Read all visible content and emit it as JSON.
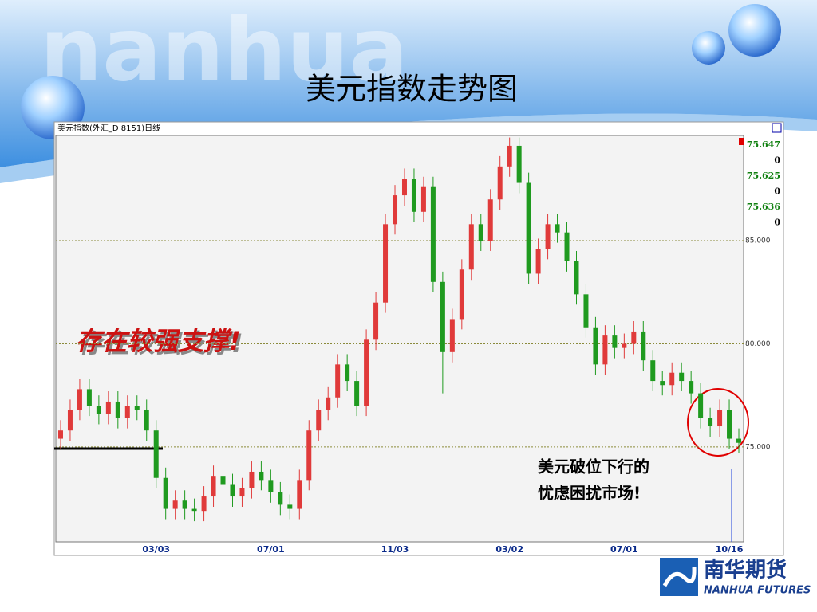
{
  "slide": {
    "title": "美元指数走势图",
    "watermark": "nanhua",
    "annotation": "存在较强支撑!",
    "note_lines": [
      "美元破位下行的",
      "忧虑困扰市场!"
    ],
    "logo_cn": "南华期货",
    "logo_en": "NANHUA FUTURES"
  },
  "quote_panel": [
    "75.647",
    "0",
    "75.625",
    "0",
    "75.636",
    "0"
  ],
  "chart_data": {
    "type": "candlestick",
    "title": "美元指数(外汇_D 8151)日线",
    "categories": [
      null,
      null,
      null,
      null,
      null,
      null,
      null,
      null,
      null,
      null,
      "03/03",
      null,
      null,
      null,
      null,
      null,
      null,
      null,
      null,
      null,
      null,
      null,
      "07/01",
      null,
      null,
      null,
      null,
      null,
      null,
      null,
      null,
      null,
      null,
      null,
      null,
      "11/03",
      null,
      null,
      null,
      null,
      null,
      null,
      null,
      null,
      null,
      null,
      null,
      "03/02",
      null,
      null,
      null,
      null,
      null,
      null,
      null,
      null,
      null,
      null,
      null,
      "07/01",
      null,
      null,
      null,
      null,
      null,
      null,
      null,
      null,
      null,
      null,
      "10/16",
      null
    ],
    "open": [
      75.4,
      75.8,
      76.8,
      77.8,
      77.0,
      76.6,
      77.2,
      76.4,
      77.0,
      76.8,
      75.8,
      73.5,
      72.0,
      72.4,
      72.0,
      71.9,
      72.6,
      73.6,
      73.2,
      72.6,
      73.0,
      73.8,
      73.4,
      72.8,
      72.2,
      72.0,
      73.4,
      75.8,
      76.8,
      77.4,
      79.0,
      78.2,
      77.0,
      80.2,
      82.0,
      85.8,
      87.2,
      88.0,
      86.4,
      87.6,
      83.0,
      79.6,
      81.2,
      83.6,
      85.8,
      85.0,
      87.0,
      88.6,
      89.6,
      87.8,
      83.4,
      84.6,
      85.8,
      85.4,
      84.0,
      82.4,
      80.8,
      79.0,
      80.4,
      79.8,
      80.0,
      80.6,
      79.2,
      78.2,
      78.0,
      78.6,
      78.2,
      77.6,
      76.4,
      76.0,
      76.8,
      75.4
    ],
    "high": [
      76.3,
      77.3,
      78.3,
      78.3,
      77.5,
      77.7,
      77.7,
      77.5,
      77.5,
      77.3,
      76.3,
      74.0,
      72.9,
      72.9,
      72.5,
      73.1,
      74.1,
      74.1,
      73.7,
      73.5,
      74.3,
      74.3,
      73.9,
      73.3,
      72.7,
      73.9,
      76.3,
      77.3,
      77.9,
      79.5,
      79.5,
      78.7,
      80.7,
      82.5,
      86.3,
      87.7,
      88.5,
      88.5,
      88.1,
      88.1,
      83.5,
      81.7,
      84.1,
      86.3,
      86.3,
      87.5,
      89.1,
      90.0,
      90.0,
      88.3,
      85.1,
      86.3,
      86.3,
      85.9,
      84.5,
      82.9,
      81.3,
      80.9,
      80.9,
      80.5,
      81.1,
      81.1,
      79.7,
      78.7,
      79.1,
      79.1,
      78.7,
      78.1,
      76.9,
      77.3,
      77.3,
      75.9
    ],
    "low": [
      74.9,
      75.3,
      76.3,
      76.5,
      76.1,
      76.1,
      75.9,
      75.9,
      76.3,
      75.3,
      73.0,
      71.5,
      71.5,
      71.5,
      71.4,
      71.4,
      72.1,
      72.7,
      72.1,
      72.1,
      72.5,
      72.9,
      72.3,
      71.7,
      71.5,
      71.5,
      72.9,
      75.3,
      76.3,
      76.9,
      77.7,
      76.5,
      76.5,
      79.7,
      81.5,
      85.3,
      86.7,
      85.9,
      85.9,
      82.5,
      77.6,
      79.1,
      80.7,
      83.1,
      84.5,
      84.5,
      86.5,
      88.1,
      87.3,
      82.9,
      82.9,
      84.1,
      84.9,
      83.5,
      81.9,
      80.3,
      78.5,
      78.5,
      79.3,
      79.3,
      79.5,
      78.7,
      77.7,
      77.5,
      77.5,
      77.7,
      77.1,
      75.9,
      75.5,
      75.5,
      74.9,
      74.7
    ],
    "close": [
      75.8,
      76.8,
      77.8,
      77.0,
      76.6,
      77.2,
      76.4,
      77.0,
      76.8,
      75.8,
      73.5,
      72.0,
      72.4,
      72.0,
      71.9,
      72.6,
      73.6,
      73.2,
      72.6,
      73.0,
      73.8,
      73.4,
      72.8,
      72.2,
      72.0,
      73.4,
      75.8,
      76.8,
      77.4,
      79.0,
      78.2,
      77.0,
      80.2,
      82.0,
      85.8,
      87.2,
      88.0,
      86.4,
      87.6,
      83.0,
      79.6,
      81.2,
      83.6,
      85.8,
      85.0,
      87.0,
      88.6,
      89.6,
      87.8,
      83.4,
      84.6,
      85.8,
      85.4,
      84.0,
      82.4,
      80.8,
      79.0,
      80.4,
      79.8,
      80.0,
      80.6,
      79.2,
      78.2,
      78.0,
      78.6,
      78.2,
      77.6,
      76.4,
      76.0,
      76.8,
      75.4,
      75.2
    ],
    "up_color": "#e03a3a",
    "down_color": "#1f9a1f",
    "ylim": [
      70.4,
      90.1
    ],
    "yticks": [
      {
        "value": 75,
        "label": "75.000"
      },
      {
        "value": 80,
        "label": "80.000"
      },
      {
        "value": 85,
        "label": "85.000"
      }
    ],
    "grid": true
  }
}
